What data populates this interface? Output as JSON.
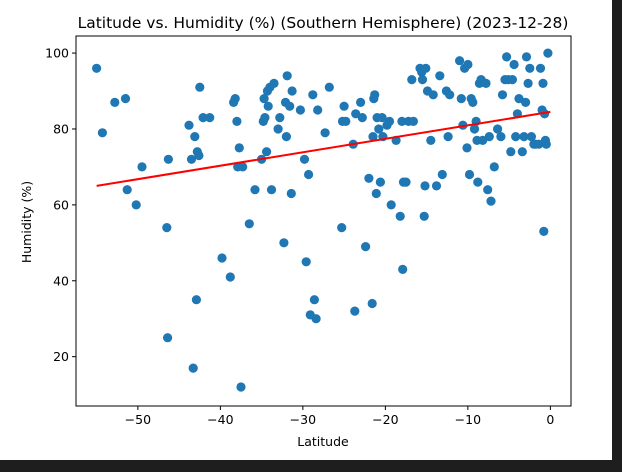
{
  "chart_data": {
    "type": "scatter",
    "title": "Latitude vs. Humidity (%) (Southern Hemisphere) (2023-12-28)",
    "xlabel": "Latitude",
    "ylabel": "Humidity (%)",
    "xlim": [
      -57.5,
      2.5
    ],
    "ylim": [
      7,
      104.5
    ],
    "xticks": [
      -50,
      -40,
      -30,
      -20,
      -10,
      0
    ],
    "yticks": [
      20,
      40,
      60,
      80,
      100
    ],
    "grid": false,
    "colors": {
      "points": "#1f77b4",
      "regression": "#ff0000"
    },
    "regression": {
      "x": [
        -55,
        0
      ],
      "y": [
        65,
        84.5
      ]
    },
    "points": [
      [
        -55,
        96
      ],
      [
        -54.3,
        79
      ],
      [
        -52.8,
        87
      ],
      [
        -51.5,
        88
      ],
      [
        -51.3,
        64
      ],
      [
        -50.2,
        60
      ],
      [
        -49.5,
        70
      ],
      [
        -46.5,
        54
      ],
      [
        -46.4,
        25
      ],
      [
        -46.3,
        72
      ],
      [
        -43.8,
        81
      ],
      [
        -43.5,
        72
      ],
      [
        -43.3,
        17
      ],
      [
        -43.1,
        78
      ],
      [
        -42.9,
        35
      ],
      [
        -42.8,
        74
      ],
      [
        -42.6,
        73
      ],
      [
        -42.5,
        91
      ],
      [
        -42.1,
        83
      ],
      [
        -41.3,
        83
      ],
      [
        -39.8,
        46
      ],
      [
        -38.8,
        41
      ],
      [
        -38.4,
        87
      ],
      [
        -38.2,
        88
      ],
      [
        -38,
        82
      ],
      [
        -37.9,
        70
      ],
      [
        -37.7,
        75
      ],
      [
        -37.5,
        12
      ],
      [
        -37.3,
        70
      ],
      [
        -36.5,
        55
      ],
      [
        -35.8,
        64
      ],
      [
        -35,
        72
      ],
      [
        -34.8,
        82
      ],
      [
        -34.7,
        88
      ],
      [
        -34.6,
        83
      ],
      [
        -34.4,
        74
      ],
      [
        -34.3,
        90
      ],
      [
        -34.2,
        86
      ],
      [
        -34,
        91
      ],
      [
        -33.8,
        64
      ],
      [
        -33.5,
        92
      ],
      [
        -33,
        80
      ],
      [
        -32.8,
        83
      ],
      [
        -32.3,
        50
      ],
      [
        -32.1,
        87
      ],
      [
        -32,
        78
      ],
      [
        -31.9,
        94
      ],
      [
        -31.6,
        86
      ],
      [
        -31.4,
        63
      ],
      [
        -31.3,
        90
      ],
      [
        -30.3,
        85
      ],
      [
        -29.8,
        72
      ],
      [
        -29.6,
        45
      ],
      [
        -29.3,
        68
      ],
      [
        -29.1,
        31
      ],
      [
        -28.8,
        89
      ],
      [
        -28.6,
        35
      ],
      [
        -28.4,
        30
      ],
      [
        -28.2,
        85
      ],
      [
        -27.3,
        79
      ],
      [
        -26.8,
        91
      ],
      [
        -25.3,
        54
      ],
      [
        -25.2,
        82
      ],
      [
        -25,
        86
      ],
      [
        -24.8,
        82
      ],
      [
        -23.9,
        76
      ],
      [
        -23.7,
        32
      ],
      [
        -23.6,
        84
      ],
      [
        -23,
        87
      ],
      [
        -22.8,
        83
      ],
      [
        -22.4,
        49
      ],
      [
        -22,
        67
      ],
      [
        -21.6,
        34
      ],
      [
        -21.5,
        78
      ],
      [
        -21.4,
        88
      ],
      [
        -21.3,
        89
      ],
      [
        -21.1,
        63
      ],
      [
        -21,
        83
      ],
      [
        -20.8,
        80
      ],
      [
        -20.6,
        66
      ],
      [
        -20.4,
        83
      ],
      [
        -20.3,
        78
      ],
      [
        -19.8,
        81
      ],
      [
        -19.5,
        82
      ],
      [
        -19.3,
        60
      ],
      [
        -18.7,
        77
      ],
      [
        -18.2,
        57
      ],
      [
        -18,
        82
      ],
      [
        -17.9,
        43
      ],
      [
        -17.8,
        66
      ],
      [
        -17.5,
        66
      ],
      [
        -17.2,
        82
      ],
      [
        -16.8,
        93
      ],
      [
        -16.6,
        82
      ],
      [
        -15.8,
        96
      ],
      [
        -15.6,
        95
      ],
      [
        -15.5,
        93
      ],
      [
        -15.3,
        57
      ],
      [
        -15.2,
        65
      ],
      [
        -15.1,
        96
      ],
      [
        -14.9,
        90
      ],
      [
        -14.5,
        77
      ],
      [
        -14.2,
        89
      ],
      [
        -13.8,
        65
      ],
      [
        -13.4,
        94
      ],
      [
        -13.1,
        68
      ],
      [
        -12.6,
        90
      ],
      [
        -12.4,
        78
      ],
      [
        -12.2,
        89
      ],
      [
        -11,
        98
      ],
      [
        -10.8,
        88
      ],
      [
        -10.6,
        81
      ],
      [
        -10.4,
        96
      ],
      [
        -10.1,
        75
      ],
      [
        -10,
        97
      ],
      [
        -9.8,
        68
      ],
      [
        -9.6,
        88
      ],
      [
        -9.4,
        87
      ],
      [
        -9.2,
        80
      ],
      [
        -9,
        82
      ],
      [
        -8.9,
        77
      ],
      [
        -8.8,
        66
      ],
      [
        -8.6,
        92
      ],
      [
        -8.4,
        93
      ],
      [
        -8.2,
        77
      ],
      [
        -7.8,
        92
      ],
      [
        -7.6,
        64
      ],
      [
        -7.4,
        78
      ],
      [
        -7.2,
        61
      ],
      [
        -6.8,
        70
      ],
      [
        -6.4,
        80
      ],
      [
        -6,
        78
      ],
      [
        -5.8,
        89
      ],
      [
        -5.5,
        93
      ],
      [
        -5.3,
        99
      ],
      [
        -5.1,
        93
      ],
      [
        -4.8,
        74
      ],
      [
        -4.6,
        93
      ],
      [
        -4.4,
        97
      ],
      [
        -4.2,
        78
      ],
      [
        -4,
        84
      ],
      [
        -3.8,
        88
      ],
      [
        -3.4,
        74
      ],
      [
        -3.2,
        78
      ],
      [
        -3,
        87
      ],
      [
        -2.9,
        99
      ],
      [
        -2.7,
        92
      ],
      [
        -2.5,
        96
      ],
      [
        -2.3,
        78
      ],
      [
        -2,
        76
      ],
      [
        -1.8,
        76
      ],
      [
        -1.4,
        76
      ],
      [
        -1.2,
        96
      ],
      [
        -1,
        85
      ],
      [
        -0.9,
        92
      ],
      [
        -0.8,
        53
      ],
      [
        -0.7,
        84
      ],
      [
        -0.6,
        77
      ],
      [
        -0.5,
        76
      ],
      [
        -0.3,
        100
      ]
    ]
  }
}
